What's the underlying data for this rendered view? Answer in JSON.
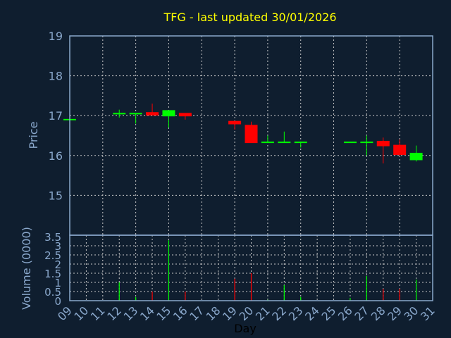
{
  "chart_data": {
    "type": "candlestick",
    "title": "TFG - last updated 30/01/2026",
    "xlabel": "Day",
    "price_ylabel": "Price",
    "volume_ylabel": "Volume (0000)",
    "x_ticks": [
      "09",
      "10",
      "11",
      "12",
      "13",
      "14",
      "15",
      "16",
      "17",
      "18",
      "19",
      "20",
      "21",
      "22",
      "23",
      "24",
      "25",
      "26",
      "27",
      "28",
      "29",
      "30",
      "31"
    ],
    "xlim": [
      9,
      31
    ],
    "price_ylim": [
      14,
      19
    ],
    "price_ticks": [
      15,
      16,
      17,
      18,
      19
    ],
    "volume_ylim": [
      0,
      3.5
    ],
    "volume_ticks": [
      "0",
      "0.5",
      "1",
      "1.5",
      "2",
      "2.5",
      "3",
      "3.5"
    ],
    "grid": true,
    "colors": {
      "background": "#0f1e2f",
      "up": "#00ff00",
      "down": "#ff0000",
      "axis": "#8aa8cc",
      "title": "#ffff00",
      "grid": "#c8c8c8"
    },
    "candles": [
      {
        "day": 9,
        "open": 16.9,
        "high": 16.9,
        "low": 16.9,
        "close": 16.9,
        "volume": 0
      },
      {
        "day": 12,
        "open": 17.05,
        "high": 17.15,
        "low": 16.95,
        "close": 17.05,
        "volume": 1.0
      },
      {
        "day": 13,
        "open": 17.05,
        "high": 17.05,
        "low": 16.8,
        "close": 17.05,
        "volume": 0.2
      },
      {
        "day": 14,
        "open": 17.07,
        "high": 17.3,
        "low": 17.02,
        "close": 17.02,
        "volume": 0.5
      },
      {
        "day": 15,
        "open": 17.0,
        "high": 17.12,
        "low": 16.7,
        "close": 17.12,
        "volume": 3.3
      },
      {
        "day": 16,
        "open": 17.05,
        "high": 17.05,
        "low": 16.9,
        "close": 17.0,
        "volume": 0.5
      },
      {
        "day": 19,
        "open": 16.85,
        "high": 16.85,
        "low": 16.65,
        "close": 16.8,
        "volume": 1.2
      },
      {
        "day": 20,
        "open": 16.75,
        "high": 16.85,
        "low": 16.33,
        "close": 16.33,
        "volume": 1.5
      },
      {
        "day": 21,
        "open": 16.33,
        "high": 16.5,
        "low": 16.33,
        "close": 16.33,
        "volume": 0.05
      },
      {
        "day": 22,
        "open": 16.33,
        "high": 16.6,
        "low": 16.33,
        "close": 16.33,
        "volume": 0.85
      },
      {
        "day": 23,
        "open": 16.33,
        "high": 16.33,
        "low": 16.2,
        "close": 16.33,
        "volume": 0.2
      },
      {
        "day": 26,
        "open": 16.33,
        "high": 16.33,
        "low": 16.33,
        "close": 16.33,
        "volume": 0.15
      },
      {
        "day": 27,
        "open": 16.33,
        "high": 16.5,
        "low": 16.0,
        "close": 16.33,
        "volume": 1.35
      },
      {
        "day": 28,
        "open": 16.35,
        "high": 16.45,
        "low": 15.8,
        "close": 16.25,
        "volume": 0.65
      },
      {
        "day": 29,
        "open": 16.25,
        "high": 16.4,
        "low": 16.0,
        "close": 16.03,
        "volume": 0.65
      },
      {
        "day": 30,
        "open": 15.9,
        "high": 16.25,
        "low": 15.85,
        "close": 16.05,
        "volume": 1.15
      }
    ]
  }
}
